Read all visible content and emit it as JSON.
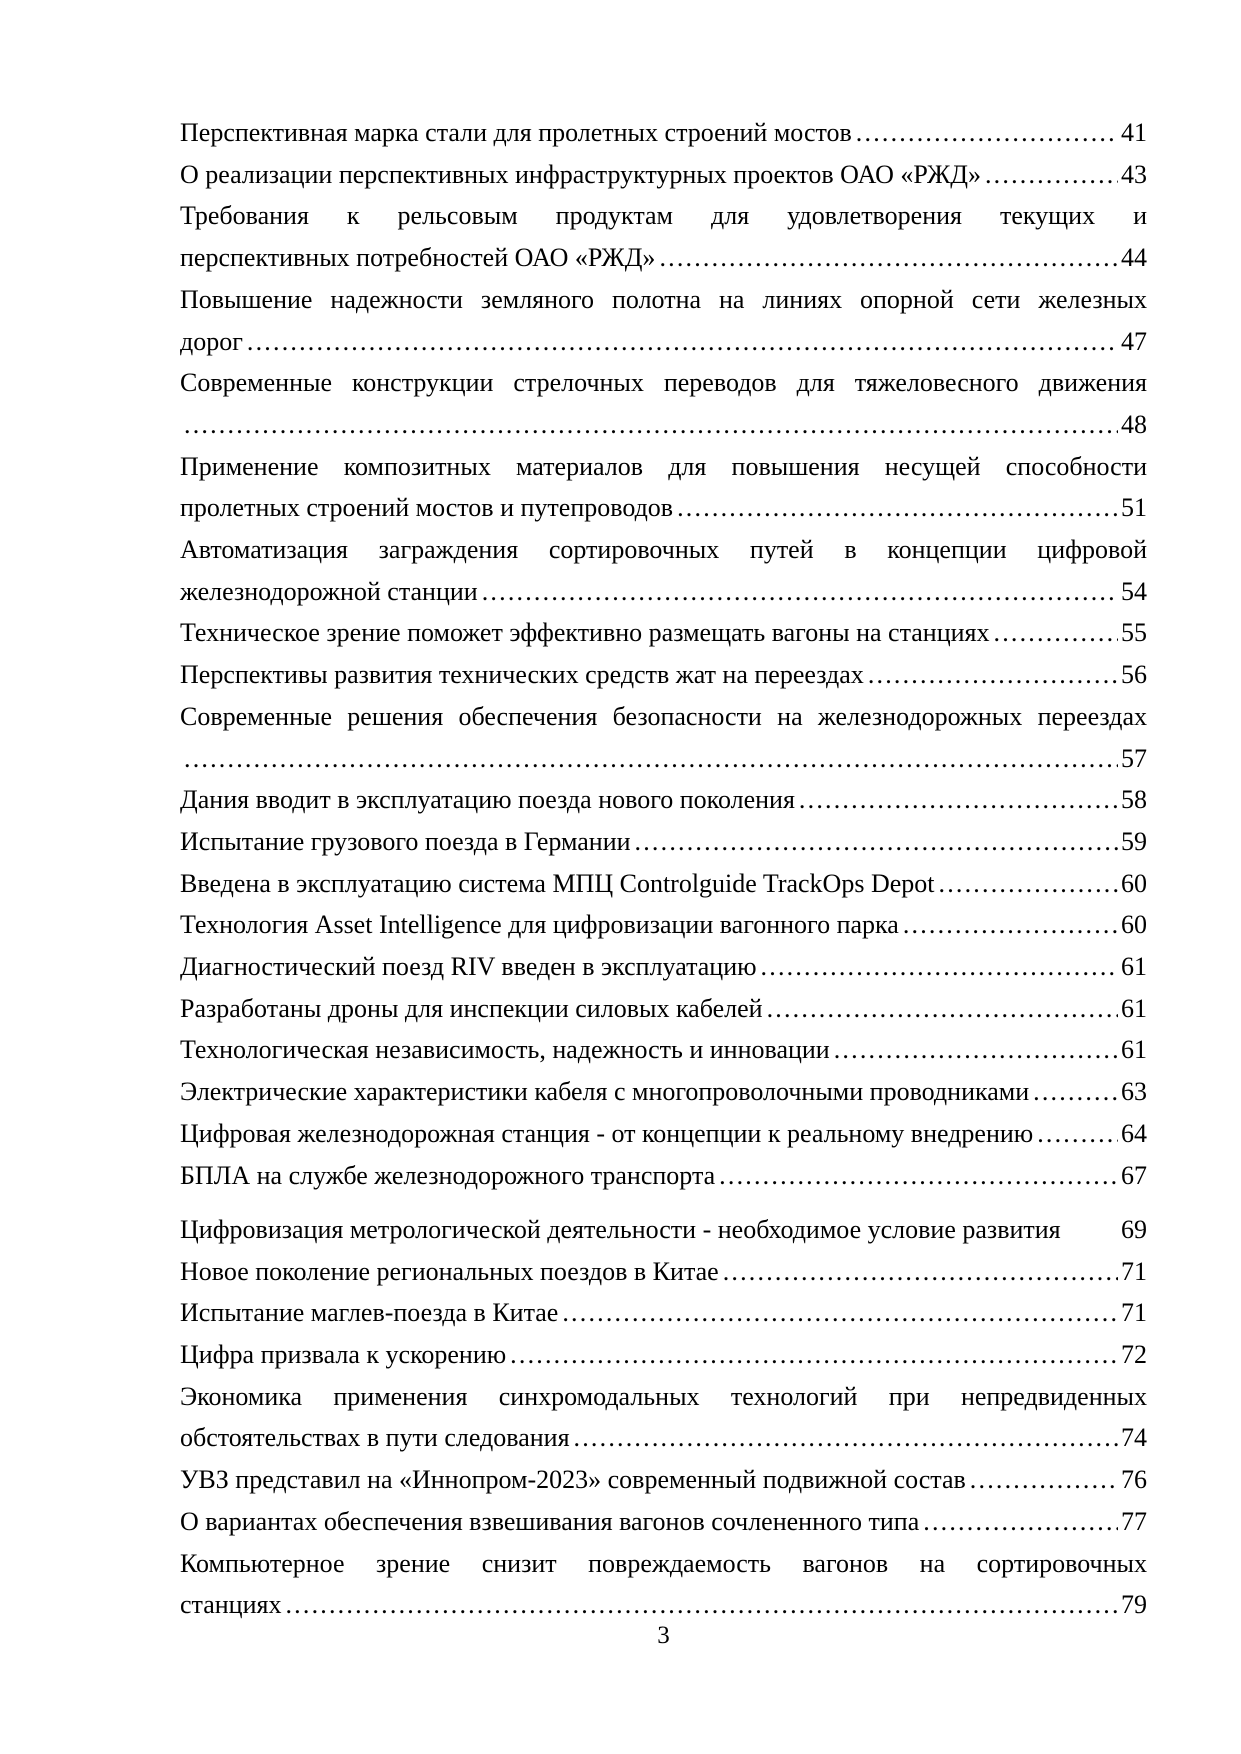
{
  "page": {
    "background_color": "#ffffff",
    "text_color": "#000000",
    "footer_page_number": "3",
    "toc_entries": [
      {
        "lines": [
          "Перспективная марка стали для пролетных строений мостов"
        ],
        "page": "41",
        "dots": true
      },
      {
        "lines": [
          "О реализации перспективных инфраструктурных проектов ОАО «РЖД»"
        ],
        "page": "43",
        "dots": true
      },
      {
        "lines": [
          "Требования к рельсовым продуктам для удовлетворения текущих и",
          "перспективных потребностей ОАО «РЖД»"
        ],
        "page": "44",
        "dots": true
      },
      {
        "lines": [
          "Повышение надежности земляного полотна на линиях опорной сети железных",
          "дорог"
        ],
        "page": "47",
        "dots": true
      },
      {
        "lines": [
          "Современные конструкции стрелочных переводов для тяжеловесного движения",
          ""
        ],
        "page": "48",
        "dots": true
      },
      {
        "lines": [
          "Применение композитных материалов для повышения несущей способности",
          "пролетных строений мостов и путепроводов"
        ],
        "page": "51",
        "dots": true
      },
      {
        "lines": [
          "Автоматизация заграждения сортировочных путей в концепции цифровой",
          "железнодорожной станции"
        ],
        "page": "54",
        "dots": true
      },
      {
        "lines": [
          "Техническое зрение поможет эффективно размещать вагоны на станциях"
        ],
        "page": "55",
        "dots": true
      },
      {
        "lines": [
          "Перспективы развития технических средств жат на переездах"
        ],
        "page": "56",
        "dots": true
      },
      {
        "lines": [
          "Современные решения обеспечения безопасности на железнодорожных переездах",
          ""
        ],
        "page": "57",
        "dots": true
      },
      {
        "lines": [
          "Дания вводит в эксплуатацию поезда нового поколения"
        ],
        "page": "58",
        "dots": true
      },
      {
        "lines": [
          "Испытание грузового поезда в Германии"
        ],
        "page": "59",
        "dots": true
      },
      {
        "lines": [
          "Введена в эксплуатацию система МПЦ Controlguide TrackOps Depot"
        ],
        "page": "60",
        "dots": true
      },
      {
        "lines": [
          "Технология Asset Intelligence для цифровизации вагонного парка"
        ],
        "page": "60",
        "dots": true
      },
      {
        "lines": [
          "Диагностический поезд RIV введен в эксплуатацию"
        ],
        "page": "61",
        "dots": true
      },
      {
        "lines": [
          "Разработаны дроны для инспекции силовых кабелей"
        ],
        "page": "61",
        "dots": true
      },
      {
        "lines": [
          "Технологическая независимость, надежность и инновации"
        ],
        "page": "61",
        "dots": true
      },
      {
        "lines": [
          "Электрические характеристики кабеля с многопроволочными проводниками"
        ],
        "page": "63",
        "dots": true
      },
      {
        "lines": [
          "Цифровая железнодорожная станция - от концепции к реальному внедрению"
        ],
        "page": "64",
        "dots": true
      },
      {
        "lines": [
          "БПЛА на службе железнодорожного транспорта"
        ],
        "page": "67",
        "dots": true
      },
      {
        "lines": [
          "Цифровизация метрологической деятельности - необходимое условие развития"
        ],
        "page": "69",
        "dots": false
      },
      {
        "lines": [
          "Новое поколение региональных поездов в Китае"
        ],
        "page": "71",
        "dots": true
      },
      {
        "lines": [
          "Испытание маглев-поезда в Китае"
        ],
        "page": "71",
        "dots": true
      },
      {
        "lines": [
          "Цифра призвала к ускорению"
        ],
        "page": "72",
        "dots": true
      },
      {
        "lines": [
          "Экономика применения синхромодальных технологий при непредвиденных",
          "обстоятельствах в пути следования"
        ],
        "page": "74",
        "dots": true
      },
      {
        "lines": [
          "УВЗ представил на «Иннопром-2023» современный подвижной состав"
        ],
        "page": "76",
        "dots": true
      },
      {
        "lines": [
          "О вариантах обеспечения взвешивания вагонов сочлененного типа"
        ],
        "page": "77",
        "dots": true
      },
      {
        "lines": [
          "Компьютерное зрение снизит повреждаемость вагонов на сортировочных",
          "станциях"
        ],
        "page": "79",
        "dots": true
      }
    ]
  }
}
